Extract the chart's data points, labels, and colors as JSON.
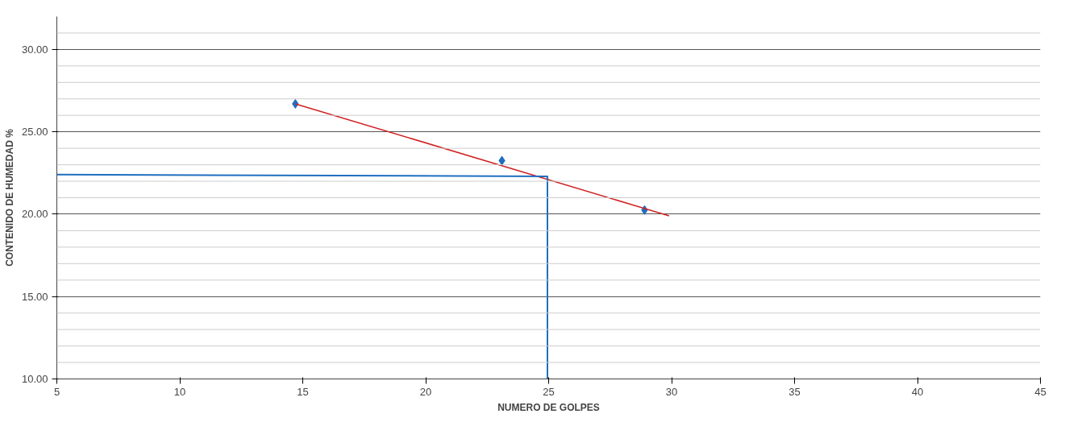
{
  "chart_data": {
    "type": "scatter",
    "xlabel": "NUMERO DE GOLPES",
    "ylabel": "CONTENIDO DE HUMEDAD %",
    "xlim": [
      5,
      45
    ],
    "xticks": [
      5,
      10,
      15,
      20,
      25,
      30,
      35,
      40,
      45
    ],
    "ylim": [
      10,
      32
    ],
    "yticks": [
      {
        "value": 10,
        "label": "10.00"
      },
      {
        "value": 15,
        "label": "15.00"
      },
      {
        "value": 20,
        "label": "20.00"
      },
      {
        "value": 25,
        "label": "25.00"
      },
      {
        "value": 30,
        "label": "30.00"
      }
    ],
    "grid": "y",
    "series": [
      {
        "color": "#1f6fc0",
        "marker": "diamond",
        "x": [
          14.7,
          23.1,
          28.9
        ],
        "values": [
          26.7,
          23.25,
          20.25
        ]
      },
      {
        "type": "line",
        "marker": "none",
        "color": "#d02020",
        "x": [
          14.7,
          29.9
        ],
        "values": [
          26.7,
          19.9
        ]
      },
      {
        "type": "line",
        "marker": "none",
        "color": "#1f6fc0",
        "x": [
          5,
          24.95,
          24.95
        ],
        "values": [
          22.4,
          22.3,
          10
        ]
      }
    ]
  }
}
